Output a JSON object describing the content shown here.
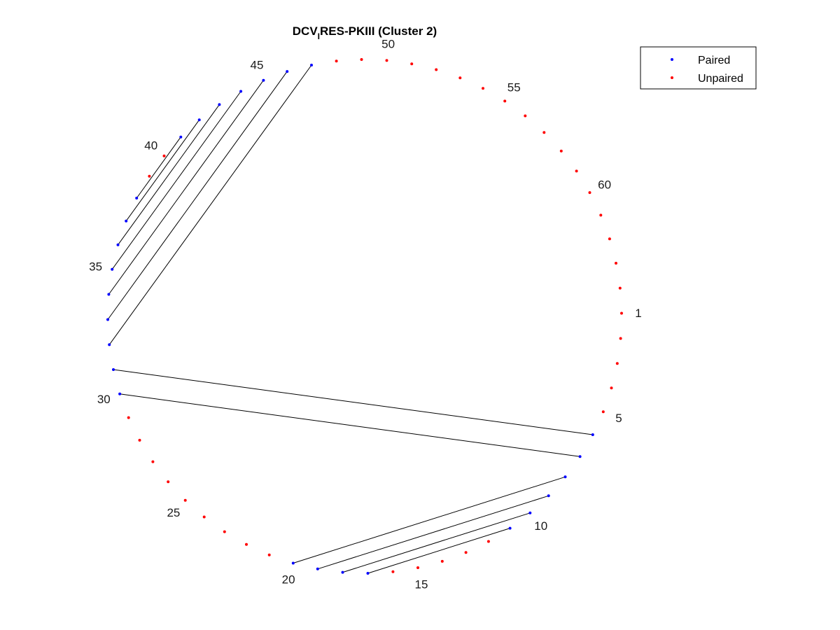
{
  "chart_data": {
    "type": "scatter",
    "subtype": "circular-base-pairing-plot",
    "title": {
      "prefix": "DCV",
      "subscript": "I",
      "suffix": "RES-PKIII (Cluster 2)"
    },
    "n_positions": 64,
    "position_labels": [
      1,
      5,
      10,
      15,
      20,
      25,
      30,
      35,
      40,
      45,
      50,
      55,
      60
    ],
    "pairs": [
      [
        6,
        31
      ],
      [
        7,
        30
      ],
      [
        8,
        20
      ],
      [
        9,
        19
      ],
      [
        10,
        18
      ],
      [
        11,
        17
      ],
      [
        32,
        47
      ],
      [
        33,
        46
      ],
      [
        34,
        45
      ],
      [
        35,
        44
      ],
      [
        36,
        43
      ],
      [
        37,
        42
      ],
      [
        38,
        41
      ]
    ],
    "note": "pairs list nucleotide positions connected by chords; unlisted positions are unpaired",
    "series": [
      {
        "name": "Paired",
        "color": "#0000ff",
        "marker": "point"
      },
      {
        "name": "Unpaired",
        "color": "#ff0000",
        "marker": "point"
      }
    ],
    "legend_position": "top-right",
    "axes_visible": false,
    "grid": false
  }
}
